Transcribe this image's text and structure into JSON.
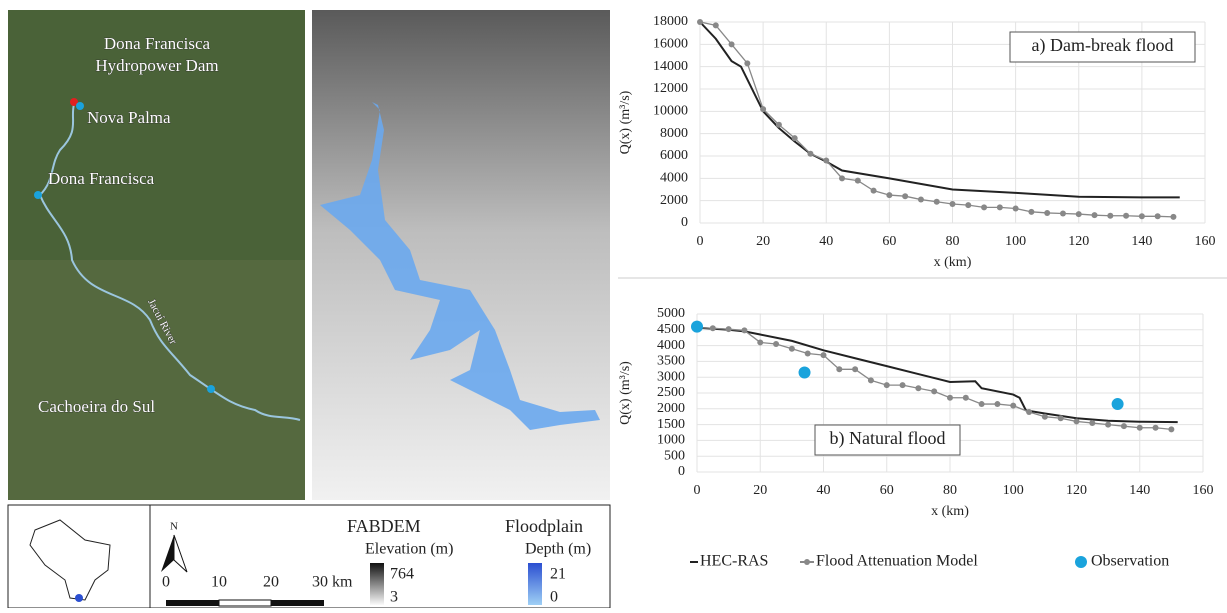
{
  "maps": {
    "labels": {
      "dam": [
        "Dona Francisca",
        "Hydropower Dam"
      ],
      "nova_palma": "Nova Palma",
      "dona_francisca": "Dona Francisca",
      "river": "Jacuí River",
      "cachoeira": "Cachoeira do Sul"
    },
    "north": "N",
    "scale": [
      "0",
      "10",
      "20",
      "30 km"
    ],
    "elevation_legend": {
      "title": "FABDEM",
      "subtitle": "Elevation (m)",
      "max": "764",
      "min": "3"
    },
    "depth_legend": {
      "title": "Floodplain",
      "subtitle": "Depth (m)",
      "max": "21",
      "min": "0"
    }
  },
  "chart_data": [
    {
      "type": "line",
      "title": "a) Dam-break flood",
      "x_label": "x (km)",
      "y_label": "Q(x) (m³/s)",
      "xlim": [
        0,
        160
      ],
      "xticks": [
        0,
        20,
        40,
        60,
        80,
        100,
        120,
        140,
        160
      ],
      "ylim": [
        0,
        18000
      ],
      "yticks": [
        0,
        2000,
        4000,
        6000,
        8000,
        10000,
        12000,
        14000,
        16000,
        18000
      ],
      "grid": true,
      "series": [
        {
          "style": "line",
          "color": "#222222",
          "x": [
            0,
            5,
            10,
            13,
            20,
            25,
            30,
            35,
            40,
            45,
            60,
            80,
            100,
            120,
            140,
            152
          ],
          "values": [
            18000,
            16500,
            14500,
            14000,
            10000,
            8500,
            7300,
            6200,
            5500,
            4700,
            4000,
            3000,
            2700,
            2350,
            2300,
            2300
          ]
        },
        {
          "style": "line-markers",
          "color": "#888888",
          "x": [
            0,
            5,
            10,
            15,
            20,
            25,
            30,
            35,
            40,
            45,
            50,
            55,
            60,
            65,
            70,
            75,
            80,
            85,
            90,
            95,
            100,
            105,
            110,
            115,
            120,
            125,
            130,
            135,
            140,
            145,
            150
          ],
          "values": [
            18000,
            17700,
            16000,
            14300,
            10200,
            8800,
            7600,
            6200,
            5600,
            4000,
            3800,
            2900,
            2500,
            2400,
            2100,
            1900,
            1700,
            1600,
            1400,
            1400,
            1300,
            1000,
            900,
            850,
            800,
            700,
            650,
            650,
            600,
            600,
            550
          ]
        }
      ]
    },
    {
      "type": "line",
      "title": "b) Natural flood",
      "x_label": "x (km)",
      "y_label": "Q(x) (m³/s)",
      "xlim": [
        0,
        160
      ],
      "xticks": [
        0,
        20,
        40,
        60,
        80,
        100,
        120,
        140,
        160
      ],
      "ylim": [
        0,
        5000
      ],
      "yticks": [
        0,
        500,
        1000,
        1500,
        2000,
        2500,
        3000,
        3500,
        4000,
        4500,
        5000
      ],
      "grid": true,
      "series": [
        {
          "name": "HEC-RAS",
          "style": "line",
          "color": "#222222",
          "x": [
            0,
            10,
            15,
            20,
            30,
            40,
            50,
            60,
            70,
            80,
            88,
            90,
            100,
            102,
            104,
            110,
            120,
            130,
            140,
            152
          ],
          "values": [
            4570,
            4500,
            4450,
            4350,
            4150,
            3850,
            3600,
            3350,
            3100,
            2850,
            2870,
            2650,
            2450,
            2350,
            1950,
            1850,
            1700,
            1620,
            1590,
            1580
          ]
        },
        {
          "name": "Flood Attenuation Model",
          "style": "line-markers",
          "color": "#888888",
          "x": [
            0,
            5,
            10,
            15,
            20,
            25,
            30,
            35,
            40,
            45,
            50,
            55,
            60,
            65,
            70,
            75,
            80,
            85,
            90,
            95,
            100,
            105,
            110,
            115,
            120,
            125,
            130,
            135,
            140,
            145,
            150
          ],
          "values": [
            4570,
            4550,
            4520,
            4480,
            4100,
            4050,
            3900,
            3750,
            3700,
            3250,
            3250,
            2900,
            2750,
            2750,
            2650,
            2550,
            2350,
            2350,
            2150,
            2150,
            2100,
            1900,
            1750,
            1700,
            1600,
            1550,
            1500,
            1450,
            1400,
            1400,
            1350
          ]
        },
        {
          "name": "Observation",
          "style": "points",
          "color": "#1aa3dc",
          "x": [
            0,
            34,
            133
          ],
          "values": [
            4600,
            3150,
            2150
          ]
        }
      ]
    }
  ]
}
